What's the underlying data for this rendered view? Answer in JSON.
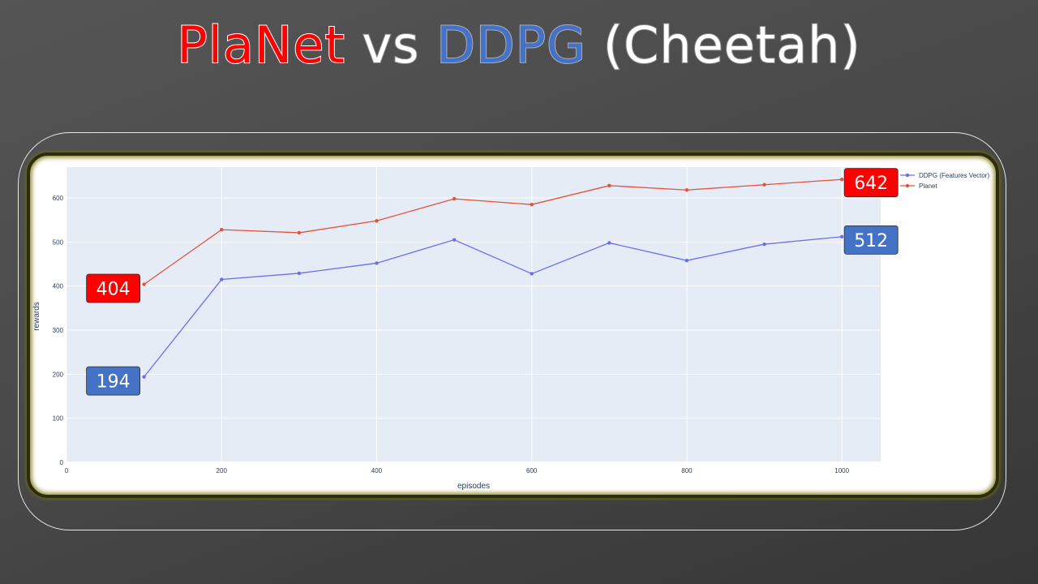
{
  "title": {
    "part1": "PlaNet",
    "part2": " vs ",
    "part3": "DDPG",
    "part4": " (Cheetah)"
  },
  "colors": {
    "planet": "#e5513a",
    "ddpg": "#6b6ef0",
    "planet_callout": "#ff0000",
    "ddpg_callout": "#4472c4",
    "plot_bg": "#e5ecf6"
  },
  "chart_data": {
    "type": "line",
    "xlabel": "episodes",
    "ylabel": "rewards",
    "xlim": [
      0,
      1050
    ],
    "ylim": [
      0,
      670
    ],
    "xticks": [
      0,
      200,
      400,
      600,
      800,
      1000
    ],
    "yticks": [
      0,
      100,
      200,
      300,
      400,
      500,
      600
    ],
    "grid": true,
    "legend_position": "top-right outside plot",
    "x": [
      100,
      200,
      300,
      400,
      500,
      600,
      700,
      800,
      900,
      1000
    ],
    "series": [
      {
        "name": "DDPG (Features Vector)",
        "values": [
          194,
          415,
          429,
          452,
          505,
          428,
          498,
          458,
          495,
          512
        ]
      },
      {
        "name": "Planet",
        "values": [
          404,
          528,
          521,
          548,
          598,
          585,
          628,
          618,
          630,
          642
        ]
      }
    ],
    "annotations": [
      {
        "text": "404",
        "series": "Planet",
        "x": 100,
        "value": 404
      },
      {
        "text": "194",
        "series": "DDPG (Features Vector)",
        "x": 100,
        "value": 194
      },
      {
        "text": "642",
        "series": "Planet",
        "x": 1000,
        "value": 642
      },
      {
        "text": "512",
        "series": "DDPG (Features Vector)",
        "x": 1000,
        "value": 512
      }
    ]
  }
}
